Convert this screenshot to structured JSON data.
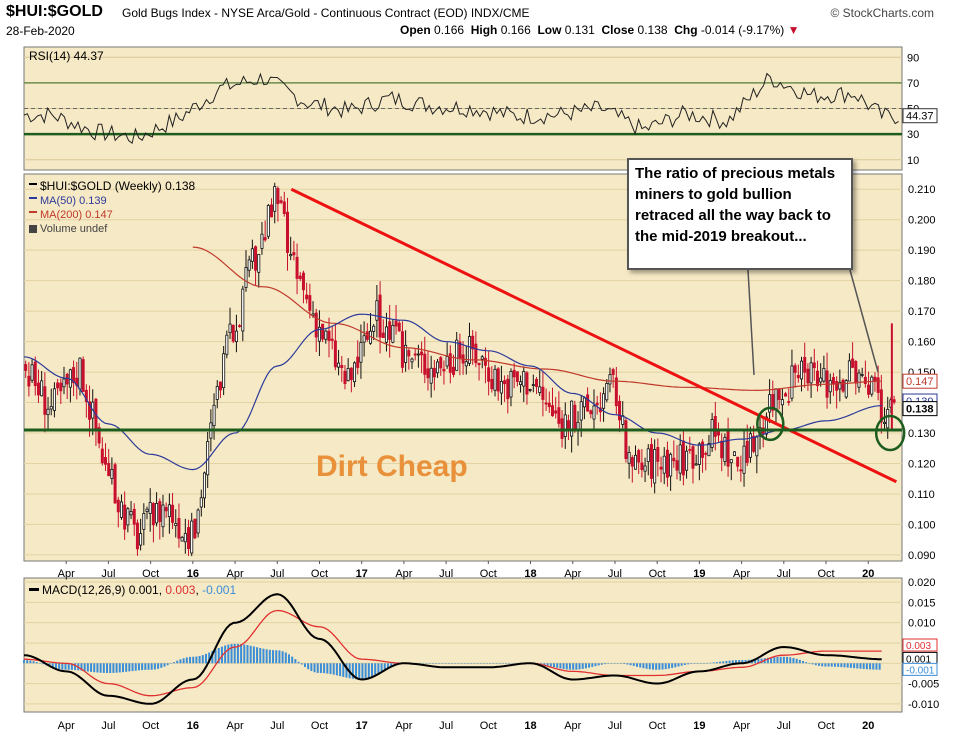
{
  "header": {
    "symbol": "$HUI:$GOLD",
    "description": "Gold Bugs Index - NYSE Arca/Gold - Continuous Contract (EOD)  INDX/CME",
    "source": "© StockCharts.com",
    "date": "28-Feb-2020",
    "open_label": "Open",
    "open": "0.166",
    "high_label": "High",
    "high": "0.166",
    "low_label": "Low",
    "low": "0.131",
    "close_label": "Close",
    "close": "0.138",
    "chg_label": "Chg",
    "chg": "-0.014 (-9.17%)"
  },
  "annotation": "The ratio of precious metals miners to gold bullion retraced all the way back to the mid-2019 breakout...",
  "callout": "Dirt Cheap",
  "colors": {
    "panel_bg": "#f6e9c5",
    "up_bar": "#111111",
    "down_bar": "#c8102e",
    "ma50": "#2b3a9b",
    "ma200": "#c0392b",
    "trendline": "#ee1111",
    "support": "#1c5c1c",
    "rsi_line": "#222222",
    "rsi_bands": "#2d6b2d",
    "macd_line": "#000000",
    "signal_line": "#e03030",
    "histogram": "#3a8ed8"
  },
  "chart_data": [
    {
      "type": "line",
      "title": "RSI(14) 44.37",
      "name": "RSI(14)",
      "current": "44.37",
      "ylim": [
        10,
        90
      ],
      "y_ticks": [
        "90",
        "70",
        "50",
        "30",
        "10"
      ],
      "x": [
        "2015-03",
        "2015-06",
        "2015-09",
        "2015-12",
        "2016-03",
        "2016-06",
        "2016-09",
        "2016-12",
        "2017-03",
        "2017-06",
        "2017-09",
        "2017-12",
        "2018-03",
        "2018-06",
        "2018-09",
        "2018-12",
        "2019-03",
        "2019-06",
        "2019-09",
        "2019-12",
        "2020-02"
      ],
      "values": [
        45,
        32,
        27,
        42,
        66,
        74,
        55,
        48,
        58,
        52,
        50,
        44,
        45,
        50,
        33,
        46,
        40,
        74,
        60,
        62,
        44
      ]
    },
    {
      "type": "candlestick",
      "title": "$HUI:$GOLD (Weekly) 0.138",
      "legend": [
        "$HUI:$GOLD (Weekly) 0.138",
        "MA(50) 0.139",
        "MA(200) 0.147",
        "Volume undef"
      ],
      "ylim": [
        0.088,
        0.215
      ],
      "y_ticks": [
        "0.210",
        "0.200",
        "0.190",
        "0.180",
        "0.170",
        "0.160",
        "0.150",
        "0.140",
        "0.130",
        "0.120",
        "0.110",
        "0.100",
        "0.090"
      ],
      "last_labels": [
        "0.147",
        "0.139",
        "0.138"
      ],
      "x_ticks": [
        "Apr",
        "Jul",
        "Oct",
        "16",
        "Apr",
        "Jul",
        "Oct",
        "17",
        "Apr",
        "Jul",
        "Oct",
        "18",
        "Apr",
        "Jul",
        "Oct",
        "19",
        "Apr",
        "Jul",
        "Oct",
        "20"
      ],
      "price_path": {
        "x": [
          "2015-01",
          "2015-03",
          "2015-05",
          "2015-07",
          "2015-09",
          "2015-11",
          "2016-01",
          "2016-03",
          "2016-05",
          "2016-07",
          "2016-08",
          "2016-10",
          "2016-12",
          "2017-02",
          "2017-04",
          "2017-06",
          "2017-09",
          "2017-11",
          "2018-01",
          "2018-03",
          "2018-05",
          "2018-07",
          "2018-08",
          "2018-10",
          "2018-12",
          "2019-02",
          "2019-04",
          "2019-06",
          "2019-08",
          "2019-10",
          "2019-12",
          "2020-02"
        ],
        "close": [
          0.152,
          0.138,
          0.152,
          0.115,
          0.096,
          0.107,
          0.095,
          0.15,
          0.182,
          0.208,
          0.185,
          0.165,
          0.146,
          0.168,
          0.156,
          0.152,
          0.157,
          0.146,
          0.148,
          0.133,
          0.137,
          0.146,
          0.118,
          0.121,
          0.122,
          0.13,
          0.118,
          0.141,
          0.148,
          0.147,
          0.15,
          0.138
        ]
      },
      "ma50": {
        "x": [
          "2015-01",
          "2015-04",
          "2015-07",
          "2015-10",
          "2016-01",
          "2016-04",
          "2016-07",
          "2016-10",
          "2017-01",
          "2017-04",
          "2017-07",
          "2017-10",
          "2018-01",
          "2018-04",
          "2018-07",
          "2018-10",
          "2019-01",
          "2019-04",
          "2019-07",
          "2019-10",
          "2020-02"
        ],
        "values": [
          0.155,
          0.148,
          0.133,
          0.123,
          0.118,
          0.13,
          0.152,
          0.164,
          0.169,
          0.167,
          0.16,
          0.157,
          0.152,
          0.143,
          0.136,
          0.13,
          0.126,
          0.128,
          0.131,
          0.134,
          0.139
        ]
      },
      "ma200": {
        "x": [
          "2016-01",
          "2016-06",
          "2016-11",
          "2017-04",
          "2017-09",
          "2018-02",
          "2018-07",
          "2018-12",
          "2019-05",
          "2019-10",
          "2020-02"
        ],
        "values": [
          0.191,
          0.178,
          0.166,
          0.158,
          0.154,
          0.151,
          0.147,
          0.145,
          0.144,
          0.146,
          0.147
        ]
      },
      "trendline": {
        "x": [
          "2016-08",
          "2020-03"
        ],
        "values": [
          0.21,
          0.114
        ]
      },
      "support_level": 0.131
    },
    {
      "type": "line",
      "title": "MACD(12,26,9) 0.001, 0.003, -0.001",
      "series": [
        {
          "name": "MACD(12,26,9)",
          "current": "0.001"
        },
        {
          "name": "signal",
          "current": "0.003"
        },
        {
          "name": "histogram",
          "current": "-0.001"
        }
      ],
      "ylim": [
        -0.012,
        0.021
      ],
      "y_ticks": [
        "0.020",
        "0.015",
        "0.010",
        "0.005",
        "0.000",
        "-0.005",
        "-0.010"
      ],
      "last_labels": [
        "0.003",
        "0.001",
        "-0.001"
      ],
      "x": [
        "2015-01",
        "2015-04",
        "2015-07",
        "2015-10",
        "2016-01",
        "2016-04",
        "2016-07",
        "2016-10",
        "2017-01",
        "2017-04",
        "2017-07",
        "2017-10",
        "2018-01",
        "2018-04",
        "2018-07",
        "2018-10",
        "2019-01",
        "2019-04",
        "2019-07",
        "2019-10",
        "2020-02"
      ],
      "macd": [
        0.002,
        -0.002,
        -0.008,
        -0.01,
        -0.004,
        0.01,
        0.017,
        0.006,
        -0.004,
        0.0,
        -0.001,
        -0.001,
        0.0,
        -0.004,
        -0.003,
        -0.005,
        -0.002,
        0.0,
        0.004,
        0.002,
        0.001
      ],
      "signal": [
        0.001,
        0.0,
        -0.005,
        -0.008,
        -0.006,
        0.004,
        0.013,
        0.009,
        0.001,
        0.0,
        -0.001,
        -0.001,
        0.0,
        -0.002,
        -0.003,
        -0.003,
        -0.002,
        -0.001,
        0.002,
        0.003,
        0.003
      ]
    }
  ]
}
